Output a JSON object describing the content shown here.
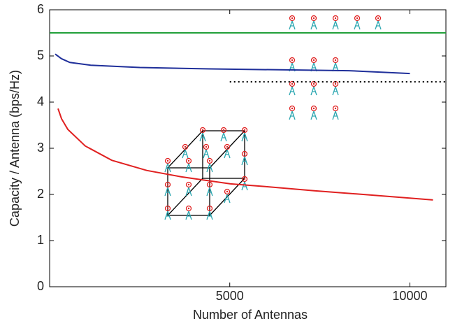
{
  "chart_data": {
    "type": "line",
    "xlabel": "Number of Antennas",
    "ylabel": "Capacity / Antenna (bps/Hz)",
    "xlim": [
      0,
      11000
    ],
    "ylim": [
      0,
      6
    ],
    "xticks": [
      5000,
      10000
    ],
    "yticks": [
      0,
      1,
      2,
      3,
      4,
      5,
      6
    ],
    "series": [
      {
        "color": "#22a03a",
        "style": "solid",
        "x": [
          0,
          11000
        ],
        "values": [
          5.5,
          5.5
        ]
      },
      {
        "color": "#1f2f9a",
        "style": "solid",
        "x": [
          155,
          330,
          560,
          1140,
          2500,
          4440,
          6380,
          8310,
          10000
        ],
        "values": [
          5.04,
          4.94,
          4.86,
          4.8,
          4.75,
          4.72,
          4.7,
          4.68,
          4.62
        ]
      },
      {
        "color": "#000000",
        "style": "dotted",
        "x": [
          5000,
          11000
        ],
        "values": [
          4.44,
          4.44
        ]
      },
      {
        "color": "#e02020",
        "style": "solid",
        "x": [
          233,
          330,
          504,
          988,
          1725,
          2694,
          3663,
          5019,
          5988,
          7345,
          8702,
          10640
        ],
        "values": [
          3.86,
          3.64,
          3.41,
          3.05,
          2.74,
          2.52,
          2.38,
          2.23,
          2.17,
          2.08,
          2.0,
          1.88
        ]
      }
    ]
  }
}
